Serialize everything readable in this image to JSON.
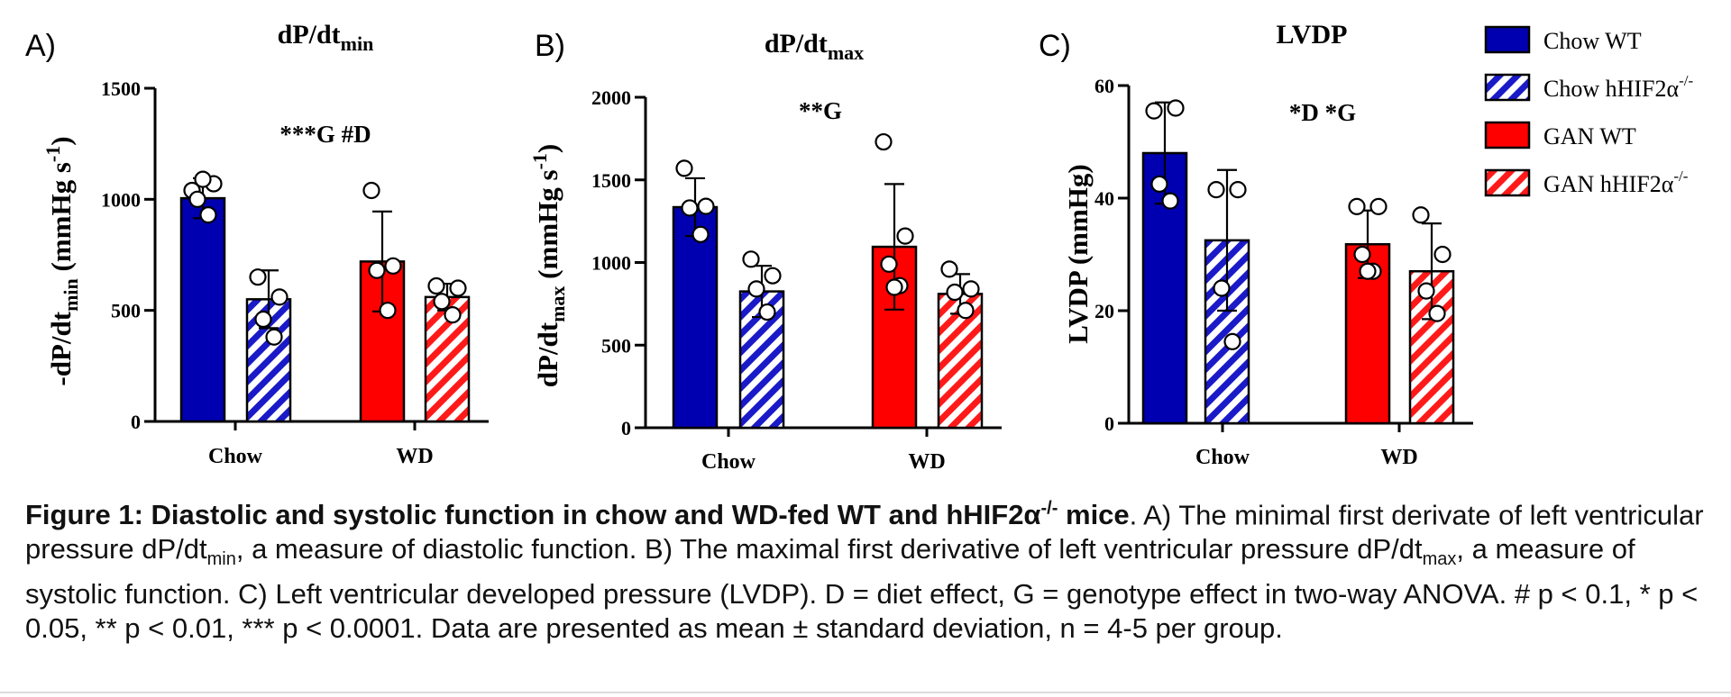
{
  "colors": {
    "chow_wt": "#0000b0",
    "chow_ko": "#1a1ac8",
    "gan_wt": "#ff0000",
    "gan_ko": "#ff1a1a"
  },
  "legend": [
    {
      "name": "Chow WT",
      "label_main": "Chow WT",
      "label_sup": "",
      "color": "#0000b0",
      "hatched": false
    },
    {
      "name": "Chow hHIF2α-/-",
      "label_main": "Chow hHIF2α",
      "label_sup": "-/-",
      "color": "#0000b0",
      "hatched": true
    },
    {
      "name": "GAN WT",
      "label_main": "GAN WT",
      "label_sup": "",
      "color": "#ff0000",
      "hatched": false
    },
    {
      "name": "GAN hHIF2α-/-",
      "label_main": "GAN hHIF2α",
      "label_sup": "-/-",
      "color": "#ff0000",
      "hatched": true
    }
  ],
  "chart_data": [
    {
      "type": "bar",
      "panel": "A)",
      "title": "dP/dt",
      "title_sub": "min",
      "ylabel_main": "-dP/dt",
      "ylabel_sub": "min",
      "ylabel_rest": " (mmHg s",
      "ylabel_sup": "-1",
      "ylabel_end": ")",
      "categories": [
        "Chow",
        "WD"
      ],
      "ylim": [
        0,
        1500
      ],
      "yticks": [
        0,
        500,
        1000,
        1500
      ],
      "significance": "***G #D",
      "series": [
        {
          "name": "Chow WT",
          "values": [
            1005,
            null
          ],
          "sd": [
            90,
            null
          ],
          "points": [
            [
              1040,
              1070,
              1000,
              930,
              1090
            ],
            null
          ]
        },
        {
          "name": "Chow hHIF2α-/-",
          "values": [
            550,
            null
          ],
          "sd": [
            130,
            null
          ],
          "points": [
            [
              650,
              560,
              460,
              380
            ],
            null
          ]
        },
        {
          "name": "GAN WT",
          "values": [
            null,
            720
          ],
          "sd": [
            null,
            225
          ],
          "points": [
            null,
            [
              1040,
              700,
              680,
              500
            ]
          ]
        },
        {
          "name": "GAN hHIF2α-/-",
          "values": [
            null,
            560
          ],
          "sd": [
            null,
            60
          ],
          "points": [
            null,
            [
              610,
              600,
              540,
              480
            ]
          ]
        }
      ]
    },
    {
      "type": "bar",
      "panel": "B)",
      "title": "dP/dt",
      "title_sub": "max",
      "ylabel_main": "dP/dt",
      "ylabel_sub": "max",
      "ylabel_rest": " (mmHg s",
      "ylabel_sup": "-1",
      "ylabel_end": ")",
      "categories": [
        "Chow",
        "WD"
      ],
      "ylim": [
        0,
        2000
      ],
      "yticks": [
        0,
        500,
        1000,
        1500,
        2000
      ],
      "significance": "**G",
      "series": [
        {
          "name": "Chow WT",
          "values": [
            1335,
            null
          ],
          "sd": [
            175,
            null
          ],
          "points": [
            [
              1570,
              1340,
              1330,
              1170
            ],
            null
          ]
        },
        {
          "name": "Chow hHIF2α-/-",
          "values": [
            825,
            null
          ],
          "sd": [
            155,
            null
          ],
          "points": [
            [
              1020,
              920,
              840,
              700
            ],
            null
          ]
        },
        {
          "name": "GAN WT",
          "values": [
            null,
            1095
          ],
          "sd": [
            null,
            380
          ],
          "points": [
            null,
            [
              1730,
              1160,
              990,
              860,
              850
            ]
          ]
        },
        {
          "name": "GAN hHIF2α-/-",
          "values": [
            null,
            810
          ],
          "sd": [
            null,
            120
          ],
          "points": [
            null,
            [
              960,
              840,
              820,
              710
            ]
          ]
        }
      ]
    },
    {
      "type": "bar",
      "panel": "C)",
      "title": "LVDP",
      "title_sub": "",
      "ylabel_main": "LVDP (mmHg)",
      "ylabel_sub": "",
      "ylabel_rest": "",
      "ylabel_sup": "",
      "ylabel_end": "",
      "categories": [
        "Chow",
        "WD"
      ],
      "ylim": [
        0,
        60
      ],
      "yticks": [
        0,
        20,
        40,
        60
      ],
      "significance": "*D *G",
      "series": [
        {
          "name": "Chow WT",
          "values": [
            48,
            null
          ],
          "sd": [
            9,
            null
          ],
          "points": [
            [
              55.5,
              56,
              42.5,
              39.5
            ],
            null
          ]
        },
        {
          "name": "Chow hHIF2α-/-",
          "values": [
            32.5,
            null
          ],
          "sd": [
            12.5,
            null
          ],
          "points": [
            [
              41.5,
              41.5,
              24,
              14.5
            ],
            null
          ]
        },
        {
          "name": "GAN WT",
          "values": [
            null,
            31.8
          ],
          "sd": [
            null,
            6
          ],
          "points": [
            null,
            [
              38.5,
              38.5,
              30,
              27,
              27
            ]
          ]
        },
        {
          "name": "GAN hHIF2α-/-",
          "values": [
            null,
            27
          ],
          "sd": [
            null,
            8.5
          ],
          "points": [
            null,
            [
              37,
              30,
              23.5,
              19.5
            ]
          ]
        }
      ]
    }
  ],
  "caption": {
    "bold_part1": "Figure 1: Diastolic and systolic function in chow and WD-fed WT and hHIF2α",
    "bold_sup": "-/-",
    "bold_part2": " mice",
    "t1": ". A) The minimal first derivate of left ventricular pressure dP/dt",
    "t1_sub": "min",
    "t2": ", a measure of diastolic function. B) The maximal first derivative of left ventricular pressure dP/dt",
    "t2_sub": "max",
    "t3": ", a measure of systolic function. C) Left ventricular developed pressure (LVDP). D = diet effect, G = genotype effect in two-way ANOVA. # p < 0.1, * p < 0.05, ** p < 0.01, *** p < 0.0001. Data are presented as mean ± standard deviation, n = 4-5 per group."
  }
}
